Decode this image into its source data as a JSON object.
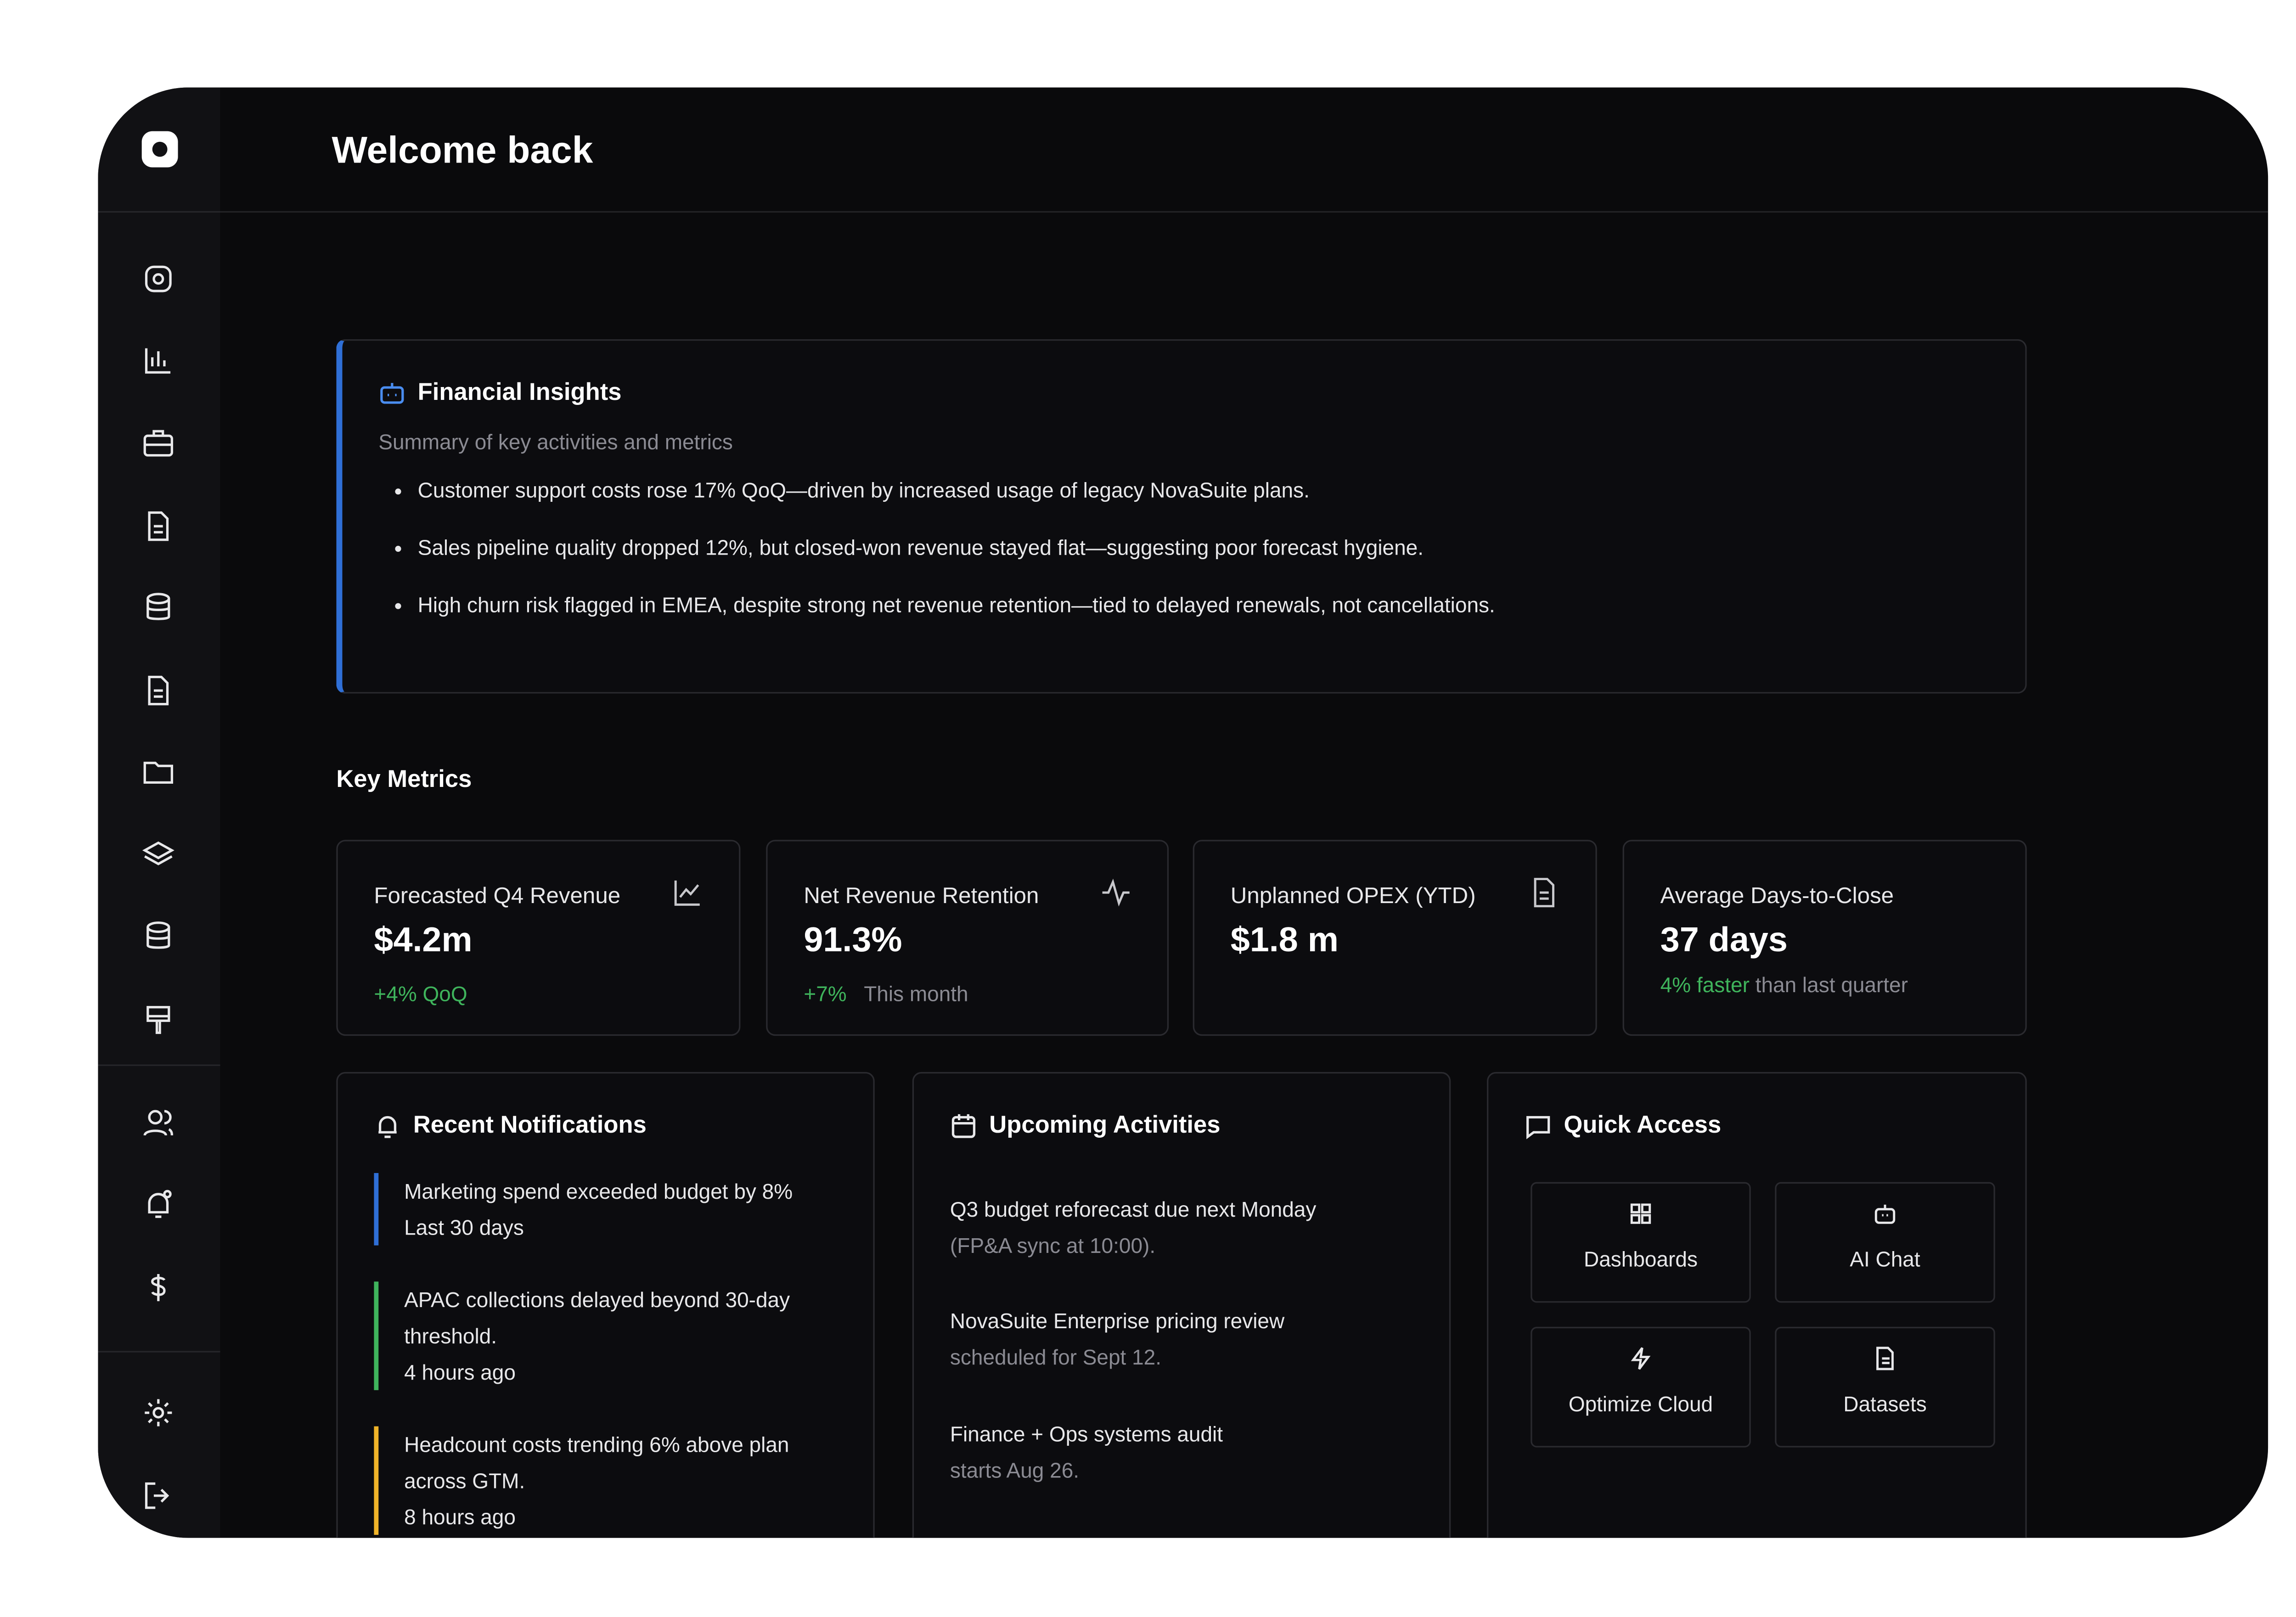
{
  "header": {
    "title": "Welcome back"
  },
  "insights": {
    "title": "Financial Insights",
    "subtitle": "Summary of key activities and metrics",
    "bullets": [
      "Customer support costs rose 17% QoQ—driven by increased usage of legacy NovaSuite plans.",
      "Sales pipeline quality dropped 12%, but closed-won revenue stayed flat—suggesting poor forecast hygiene.",
      "High churn risk flagged in EMEA, despite strong net revenue retention—tied to delayed renewals, not cancellations."
    ]
  },
  "key_metrics": {
    "title": "Key Metrics",
    "cards": [
      {
        "label": "Forecasted Q4 Revenue",
        "value": "$4.2m",
        "change": "+4% QoQ"
      },
      {
        "label": "Net Revenue Retention",
        "value": "91.3%",
        "change": "+7%",
        "note": "This month"
      },
      {
        "label": "Unplanned OPEX (YTD)",
        "value": "$1.8 m"
      },
      {
        "label": "Average Days-to-Close",
        "value": "37 days",
        "change": "4% faster",
        "note": "than last quarter"
      }
    ]
  },
  "notifications": {
    "title": "Recent Notifications",
    "items": [
      {
        "text": "Marketing spend exceeded budget by 8%",
        "time": "Last 30 days",
        "color": "#2f6fd6"
      },
      {
        "text": "APAC collections delayed beyond 30-day threshold.",
        "time": "4 hours ago",
        "color": "#3fb45c"
      },
      {
        "text": "Headcount costs trending 6% above plan across GTM.",
        "time": "8 hours ago",
        "color": "#f0b429"
      }
    ]
  },
  "activities": {
    "title": "Upcoming Activities",
    "items": [
      {
        "text": "Q3 budget reforecast due next Monday",
        "detail": "(FP&A sync at 10:00)."
      },
      {
        "text": "NovaSuite Enterprise pricing review",
        "detail": "scheduled for Sept 12."
      },
      {
        "text": "Finance + Ops systems audit",
        "detail": "starts Aug 26."
      }
    ]
  },
  "quick_access": {
    "title": "Quick Access",
    "items": [
      "Dashboards",
      "AI Chat",
      "Optimize Cloud",
      "Datasets"
    ]
  }
}
